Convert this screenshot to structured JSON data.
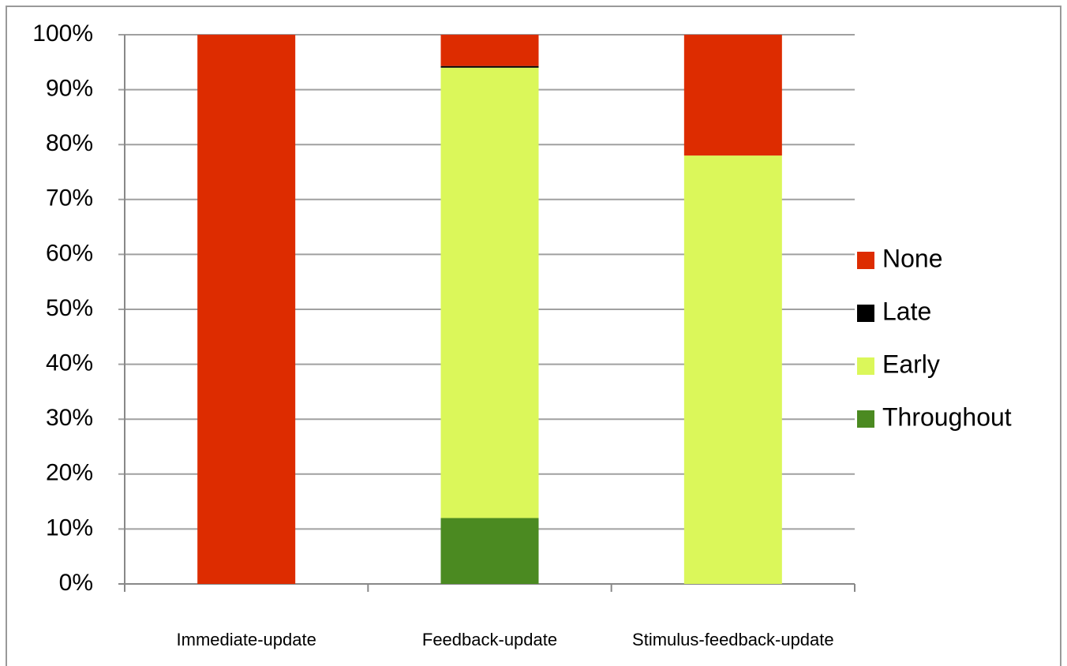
{
  "chart_data": {
    "type": "stacked-bar",
    "categories": [
      "Immediate-update",
      "Feedback-update",
      "Stimulus-feedback-update"
    ],
    "series": [
      {
        "name": "Throughout",
        "color": "#4b8a21",
        "values": [
          0,
          12,
          0
        ]
      },
      {
        "name": "Early",
        "color": "#dbf75a",
        "values": [
          0,
          82,
          78
        ]
      },
      {
        "name": "Late",
        "color": "#000000",
        "values": [
          0,
          0.3,
          0
        ]
      },
      {
        "name": "None",
        "color": "#dd2c00",
        "values": [
          100,
          5.7,
          22
        ]
      }
    ],
    "ylim": [
      0,
      100
    ],
    "yticks": [
      {
        "value": 0,
        "label": "0%"
      },
      {
        "value": 10,
        "label": "10%"
      },
      {
        "value": 20,
        "label": "20%"
      },
      {
        "value": 30,
        "label": "30%"
      },
      {
        "value": 40,
        "label": "40%"
      },
      {
        "value": 50,
        "label": "50%"
      },
      {
        "value": 60,
        "label": "60%"
      },
      {
        "value": 70,
        "label": "70%"
      },
      {
        "value": 80,
        "label": "80%"
      },
      {
        "value": 90,
        "label": "90%"
      },
      {
        "value": 100,
        "label": "100%"
      }
    ],
    "grid": true,
    "legend": "right"
  }
}
